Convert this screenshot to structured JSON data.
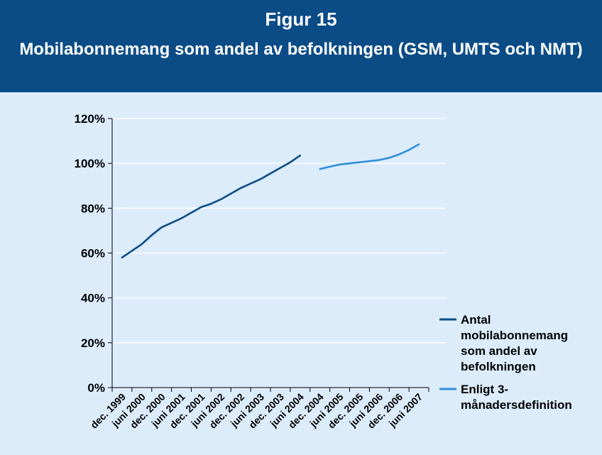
{
  "figure": {
    "label": "Figur 15",
    "title": "Mobilabonnemang som andel av befolkningen (GSM, UMTS och NMT)"
  },
  "colors": {
    "header_bg": "#0b4c86",
    "plot_bg": "#dcecfb",
    "grid": "#ffffff",
    "series1": "#0b4c86",
    "series2": "#2e8fd8"
  },
  "chart_data": {
    "type": "line",
    "categories": [
      "dec. 1999",
      "juni 2000",
      "dec. 2000",
      "juni 2001",
      "dec. 2001",
      "juni 2002",
      "dec. 2002",
      "juni 2003",
      "dec. 2003",
      "juni 2004",
      "dec. 2004",
      "juni 2005",
      "dec. 2005",
      "juni 2006",
      "dec. 2006",
      "juni 2007"
    ],
    "ylim": [
      0,
      120
    ],
    "yticks": [
      0,
      20,
      40,
      60,
      80,
      100,
      120
    ],
    "ytick_labels": [
      "0%",
      "20%",
      "40%",
      "60%",
      "80%",
      "100%",
      "120%"
    ],
    "grid": true,
    "legend_position": "right",
    "xlabel": "",
    "ylabel": "",
    "series": [
      {
        "name_lines": [
          "Antal",
          "mobilabonnemang",
          "som andel av",
          "befolkningen"
        ],
        "color": "#0b4c86",
        "points": [
          {
            "x": 0,
            "y": 58
          },
          {
            "x": 0.5,
            "y": 61
          },
          {
            "x": 1,
            "y": 64
          },
          {
            "x": 1.5,
            "y": 68
          },
          {
            "x": 2,
            "y": 71.5
          },
          {
            "x": 2.5,
            "y": 73.5
          },
          {
            "x": 3,
            "y": 75.5
          },
          {
            "x": 3.5,
            "y": 78
          },
          {
            "x": 4,
            "y": 80.5
          },
          {
            "x": 4.5,
            "y": 82
          },
          {
            "x": 5,
            "y": 84
          },
          {
            "x": 5.5,
            "y": 86.5
          },
          {
            "x": 6,
            "y": 89
          },
          {
            "x": 6.5,
            "y": 91
          },
          {
            "x": 7,
            "y": 93
          },
          {
            "x": 7.5,
            "y": 95.5
          },
          {
            "x": 8,
            "y": 98
          },
          {
            "x": 8.5,
            "y": 100.5
          },
          {
            "x": 9,
            "y": 103.5
          }
        ]
      },
      {
        "name_lines": [
          "Enligt 3-",
          "månadersdefinition"
        ],
        "color": "#2e8fd8",
        "points": [
          {
            "x": 10,
            "y": 97.5
          },
          {
            "x": 10.5,
            "y": 98.5
          },
          {
            "x": 11,
            "y": 99.5
          },
          {
            "x": 11.5,
            "y": 100
          },
          {
            "x": 12,
            "y": 100.5
          },
          {
            "x": 12.5,
            "y": 101
          },
          {
            "x": 13,
            "y": 101.5
          },
          {
            "x": 13.5,
            "y": 102.5
          },
          {
            "x": 14,
            "y": 104
          },
          {
            "x": 14.5,
            "y": 106
          },
          {
            "x": 15,
            "y": 108.5
          }
        ]
      }
    ]
  }
}
